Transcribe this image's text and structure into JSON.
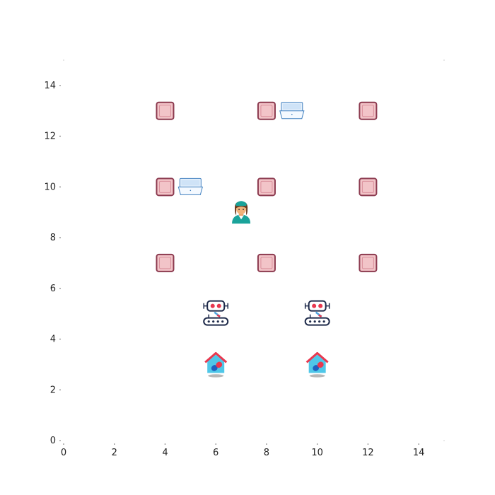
{
  "chart_data": {
    "type": "scatter",
    "xlim": [
      0,
      15
    ],
    "ylim": [
      0,
      15
    ],
    "x_ticks": [
      "0",
      "2",
      "4",
      "6",
      "8",
      "10",
      "12",
      "14"
    ],
    "y_ticks": [
      "0",
      "2",
      "4",
      "6",
      "8",
      "10",
      "12",
      "14"
    ],
    "grid": false,
    "entities": {
      "shelves": [
        {
          "x": 4,
          "y": 13
        },
        {
          "x": 8,
          "y": 13
        },
        {
          "x": 12,
          "y": 13
        },
        {
          "x": 4,
          "y": 10
        },
        {
          "x": 8,
          "y": 10
        },
        {
          "x": 12,
          "y": 10
        },
        {
          "x": 4,
          "y": 7
        },
        {
          "x": 8,
          "y": 7
        },
        {
          "x": 12,
          "y": 7
        }
      ],
      "trays": [
        {
          "x": 9,
          "y": 13
        },
        {
          "x": 5,
          "y": 10
        }
      ],
      "nurse": {
        "x": 7,
        "y": 9
      },
      "robots": [
        {
          "x": 6,
          "y": 5
        },
        {
          "x": 10,
          "y": 5
        }
      ],
      "pharmacies": [
        {
          "x": 6,
          "y": 3
        },
        {
          "x": 10,
          "y": 3
        }
      ]
    }
  },
  "colors": {
    "shelf_fill": "#f2c4c8",
    "shelf_stroke": "#8c3a4f",
    "tray_fill": "#cfe3f7",
    "tray_stroke": "#3f7fbf",
    "robot_dark": "#1e2a4a",
    "robot_red": "#e8384f",
    "pharmacy_wall": "#4fc7e8",
    "pharmacy_roof": "#e8384f"
  },
  "icons": {
    "shelf": "shelf-icon",
    "tray": "tray-icon",
    "nurse": "nurse-icon",
    "robot": "robot-icon",
    "pharmacy": "pharmacy-icon"
  }
}
